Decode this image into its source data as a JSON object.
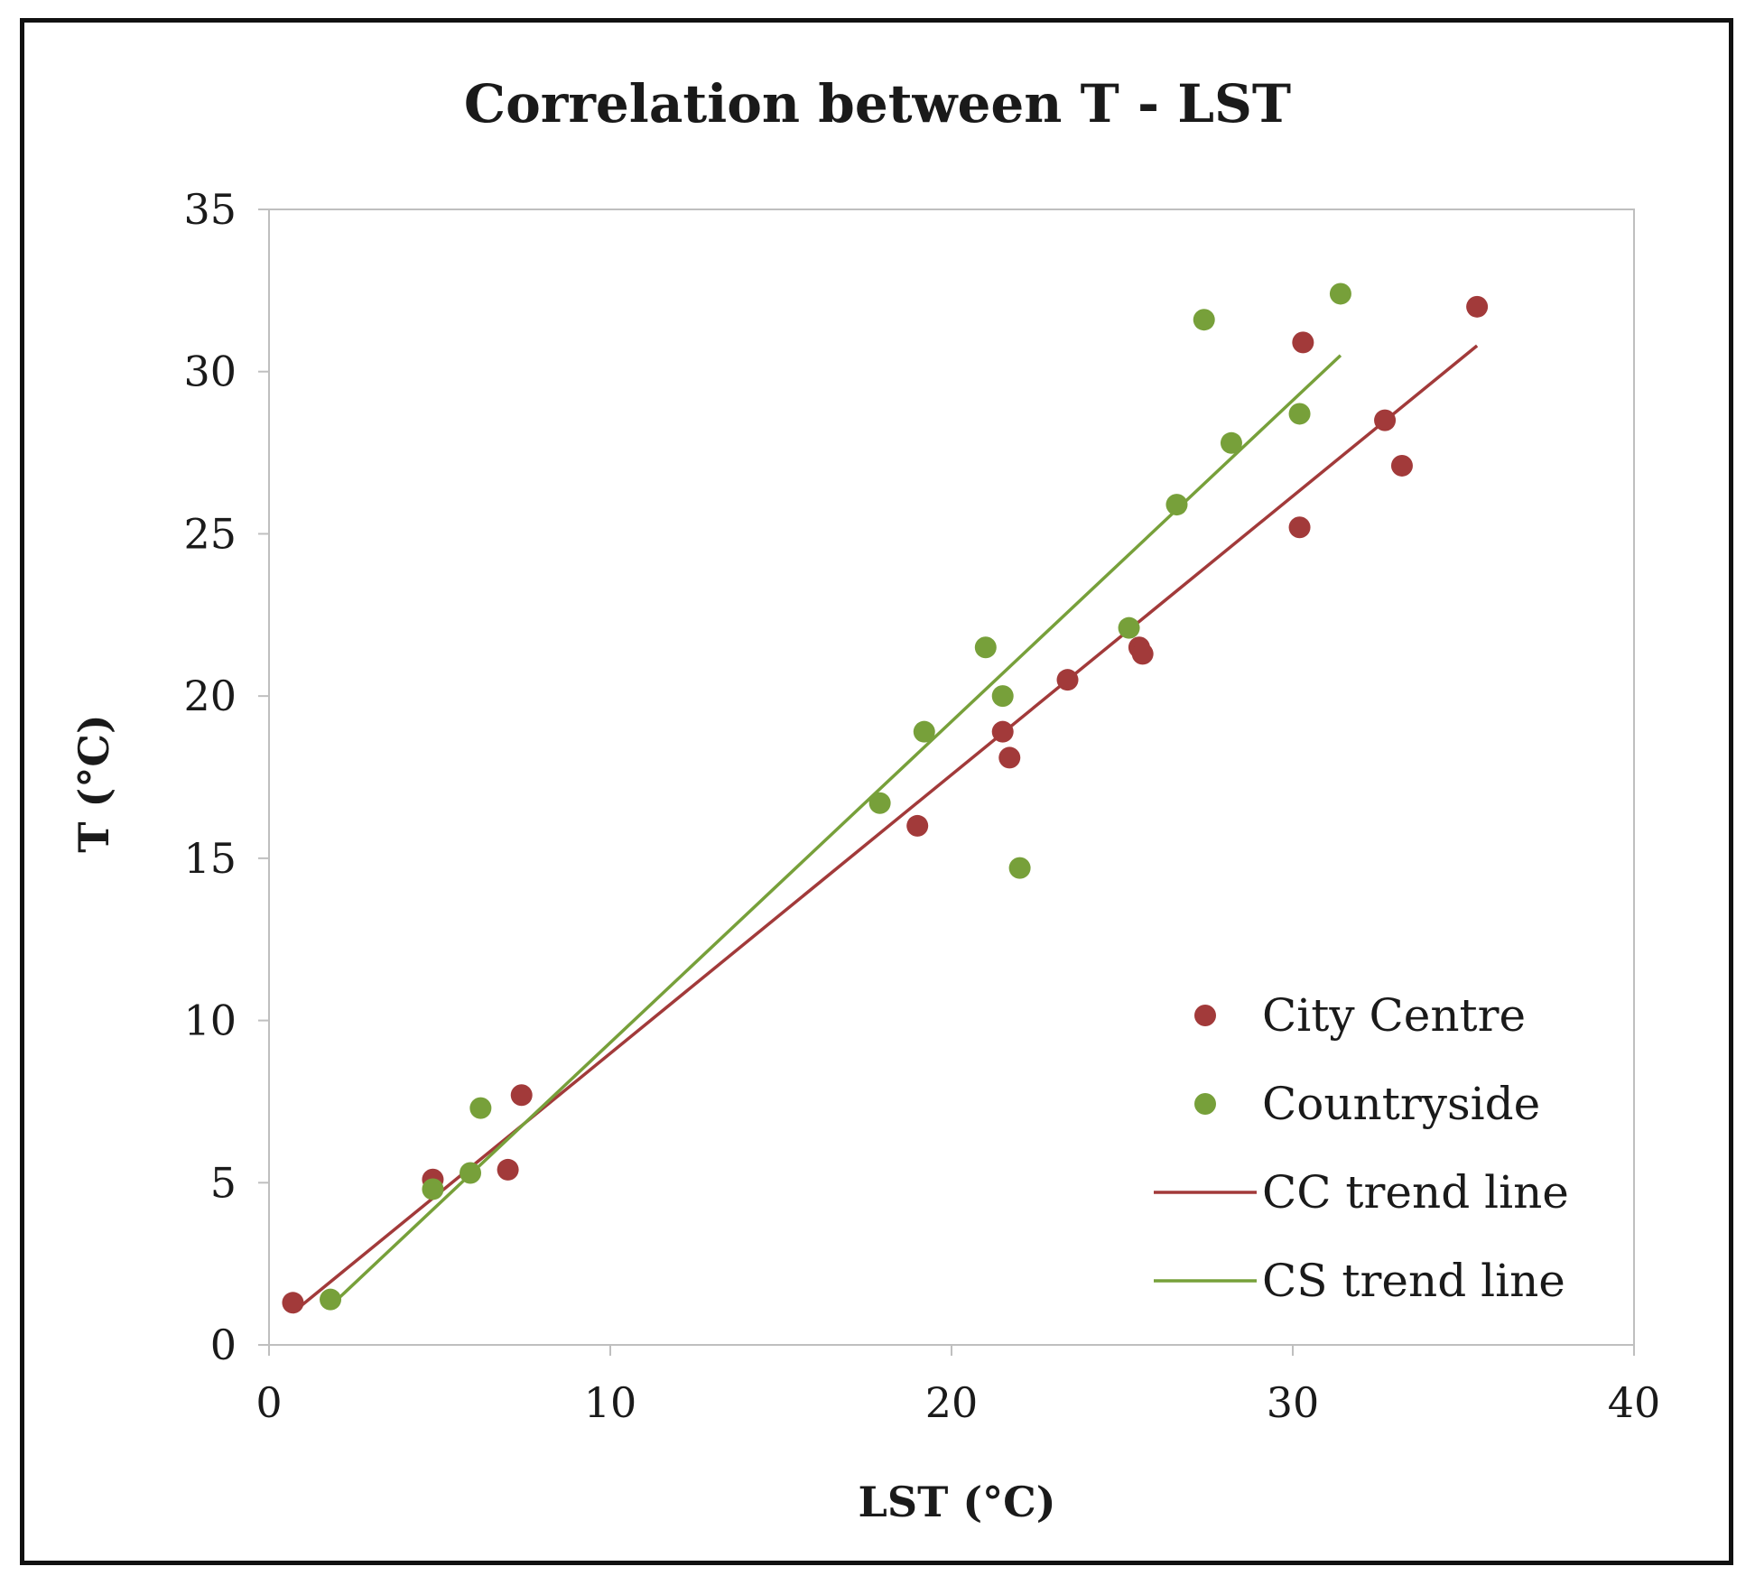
{
  "chart_data": {
    "type": "scatter",
    "title": "Correlation between T - LST",
    "xlabel": "LST (°C)",
    "ylabel": "T (°C)",
    "xlim": [
      0,
      40
    ],
    "ylim": [
      0,
      35
    ],
    "xticks": [
      0,
      10,
      20,
      30,
      40
    ],
    "yticks": [
      0,
      5,
      10,
      15,
      20,
      25,
      30,
      35
    ],
    "grid": false,
    "legend_position": "bottom-right",
    "series": [
      {
        "name": "City Centre",
        "kind": "scatter",
        "color": "#a23a3a",
        "points": [
          [
            0.7,
            1.3
          ],
          [
            4.8,
            5.1
          ],
          [
            7.0,
            5.4
          ],
          [
            7.4,
            7.7
          ],
          [
            19.0,
            16.0
          ],
          [
            21.5,
            18.9
          ],
          [
            21.7,
            18.1
          ],
          [
            23.4,
            20.5
          ],
          [
            25.5,
            21.5
          ],
          [
            25.6,
            21.3
          ],
          [
            30.2,
            25.2
          ],
          [
            30.3,
            30.9
          ],
          [
            32.7,
            28.5
          ],
          [
            33.2,
            27.1
          ],
          [
            35.4,
            32.0
          ]
        ]
      },
      {
        "name": "Countryside",
        "kind": "scatter",
        "color": "#77a03a",
        "points": [
          [
            1.8,
            1.4
          ],
          [
            4.8,
            4.8
          ],
          [
            5.9,
            5.3
          ],
          [
            6.2,
            7.3
          ],
          [
            17.9,
            16.7
          ],
          [
            19.2,
            18.9
          ],
          [
            21.0,
            21.5
          ],
          [
            21.5,
            20.0
          ],
          [
            22.0,
            14.7
          ],
          [
            25.2,
            22.1
          ],
          [
            26.6,
            25.9
          ],
          [
            27.4,
            31.6
          ],
          [
            28.2,
            27.8
          ],
          [
            30.2,
            28.7
          ],
          [
            31.4,
            32.4
          ]
        ]
      },
      {
        "name": "CC trend line",
        "kind": "line",
        "color": "#a23a3a",
        "points": [
          [
            0.7,
            1.0
          ],
          [
            35.4,
            30.8
          ]
        ]
      },
      {
        "name": "CS trend line",
        "kind": "line",
        "color": "#77a03a",
        "points": [
          [
            1.8,
            1.2
          ],
          [
            31.4,
            30.5
          ]
        ]
      }
    ]
  }
}
